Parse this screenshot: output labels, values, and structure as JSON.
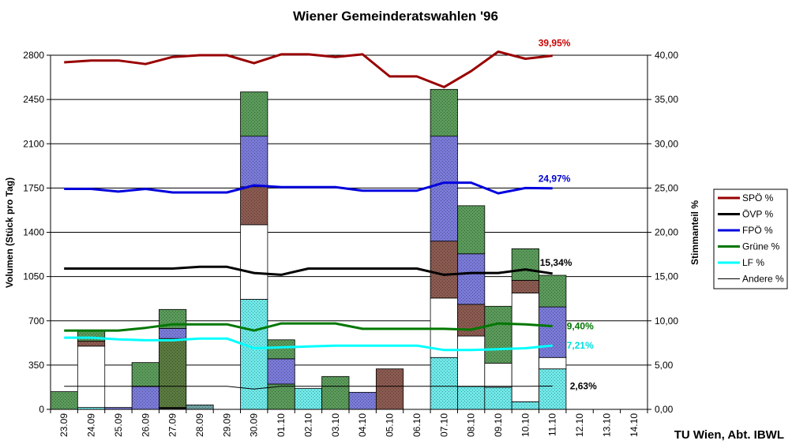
{
  "chart_data": {
    "type": "bar",
    "title": "Wiener Gemeinderatswahlen '96",
    "ylabel": "Volumen (Stück pro Tag)",
    "y2label": "Stimmanteil %",
    "footer": "TU Wien, Abt. IBWL",
    "categories": [
      "23.09",
      "24.09",
      "25.09",
      "26.09",
      "27.09",
      "28.09",
      "29.09",
      "30.09",
      "01.10",
      "02.10",
      "03.10",
      "04.10",
      "05.10",
      "06.10",
      "07.10",
      "08.10",
      "09.10",
      "10.10",
      "11.10",
      "12.10",
      "13.10",
      "14.10"
    ],
    "ylim": [
      0,
      2800
    ],
    "y2lim": [
      0,
      40
    ],
    "yticks": [
      "0",
      "350",
      "700",
      "1050",
      "1400",
      "1750",
      "2100",
      "2450",
      "2800"
    ],
    "y2ticks": [
      "0,00",
      "5,00",
      "10,00",
      "15,00",
      "20,00",
      "25,00",
      "30,00",
      "35,00",
      "40,00"
    ],
    "bar_segments": [
      [
        {
          "v": 140,
          "c": "#5a9a5a"
        }
      ],
      [
        {
          "v": 15,
          "c": "#6fe8e8"
        },
        {
          "v": 485,
          "c": "#ffffff"
        },
        {
          "v": 40,
          "c": "#8a5a50"
        },
        {
          "v": 80,
          "c": "#5a9a5a"
        }
      ],
      [
        {
          "v": 15,
          "c": "#7a7ad8"
        }
      ],
      [
        {
          "v": 180,
          "c": "#7a7ad8"
        },
        {
          "v": 190,
          "c": "#5a9a5a"
        }
      ],
      [
        {
          "v": 15,
          "c": "#111111"
        },
        {
          "v": 545,
          "c": "#5a7a40"
        },
        {
          "v": 80,
          "c": "#7a7ad8"
        },
        {
          "v": 150,
          "c": "#5a9a5a"
        }
      ],
      [
        {
          "v": 35,
          "c": "#6fa0a0"
        }
      ],
      [],
      [
        {
          "v": 870,
          "c": "#6fe8e8"
        },
        {
          "v": 590,
          "c": "#ffffff"
        },
        {
          "v": 300,
          "c": "#8a5a50"
        },
        {
          "v": 400,
          "c": "#7a7ad8"
        },
        {
          "v": 350,
          "c": "#5a9a5a"
        }
      ],
      [
        {
          "v": 200,
          "c": "#5a9a5a"
        },
        {
          "v": 200,
          "c": "#7a7ad8"
        },
        {
          "v": 150,
          "c": "#5a9a5a"
        }
      ],
      [
        {
          "v": 165,
          "c": "#6fe8e8"
        }
      ],
      [
        {
          "v": 260,
          "c": "#5a9a5a"
        }
      ],
      [
        {
          "v": 135,
          "c": "#7a7ad8"
        }
      ],
      [
        {
          "v": 320,
          "c": "#8a5a50"
        }
      ],
      [],
      [
        {
          "v": 410,
          "c": "#6fe8e8"
        },
        {
          "v": 470,
          "c": "#ffffff"
        },
        {
          "v": 450,
          "c": "#8a5a50"
        },
        {
          "v": 830,
          "c": "#7a7ad8"
        },
        {
          "v": 370,
          "c": "#5a9a5a"
        }
      ],
      [
        {
          "v": 180,
          "c": "#6fe8e8"
        },
        {
          "v": 400,
          "c": "#ffffff"
        },
        {
          "v": 250,
          "c": "#8a5a50"
        },
        {
          "v": 400,
          "c": "#7a7ad8"
        },
        {
          "v": 380,
          "c": "#5a9a5a"
        }
      ],
      [
        {
          "v": 175,
          "c": "#6fe8e8"
        },
        {
          "v": 190,
          "c": "#ffffff"
        },
        {
          "v": 450,
          "c": "#5a9a5a"
        }
      ],
      [
        {
          "v": 60,
          "c": "#6fe8e8"
        },
        {
          "v": 860,
          "c": "#ffffff"
        },
        {
          "v": 100,
          "c": "#8a5a50"
        },
        {
          "v": 250,
          "c": "#5a9a5a"
        }
      ],
      [
        {
          "v": 320,
          "c": "#6fe8e8"
        },
        {
          "v": 90,
          "c": "#ffffff"
        },
        {
          "v": 400,
          "c": "#7a7ad8"
        },
        {
          "v": 250,
          "c": "#5a9a5a"
        }
      ],
      [],
      [],
      []
    ],
    "series": [
      {
        "name": "SPÖ %",
        "color": "#990000",
        "width": 3,
        "values": [
          39.2,
          39.4,
          39.4,
          39.0,
          39.8,
          40.0,
          40.0,
          39.1,
          40.1,
          40.1,
          39.8,
          40.1,
          37.6,
          37.6,
          36.4,
          38.2,
          40.4,
          39.6,
          39.95,
          null,
          null,
          null
        ]
      },
      {
        "name": "ÖVP %",
        "color": "#000000",
        "width": 3,
        "values": [
          15.9,
          15.9,
          15.9,
          15.9,
          15.9,
          16.1,
          16.1,
          15.4,
          15.2,
          15.9,
          15.9,
          15.9,
          15.9,
          15.9,
          15.2,
          15.4,
          15.4,
          15.8,
          15.34,
          null,
          null,
          null
        ]
      },
      {
        "name": "FPÖ %",
        "color": "#0000dd",
        "width": 3,
        "values": [
          24.9,
          24.9,
          24.6,
          24.9,
          24.5,
          24.5,
          24.5,
          25.3,
          25.1,
          25.1,
          25.1,
          24.7,
          24.7,
          24.7,
          25.6,
          25.6,
          24.4,
          25.0,
          24.97,
          null,
          null,
          null
        ]
      },
      {
        "name": "Grüne %",
        "color": "#007700",
        "width": 3,
        "values": [
          8.9,
          8.9,
          8.9,
          9.2,
          9.6,
          9.6,
          9.6,
          8.9,
          9.7,
          9.7,
          9.7,
          9.1,
          9.1,
          9.1,
          9.1,
          9.0,
          9.7,
          9.6,
          9.4,
          null,
          null,
          null
        ]
      },
      {
        "name": "LF %",
        "color": "#00ffff",
        "width": 3,
        "values": [
          8.1,
          8.1,
          7.9,
          7.8,
          7.8,
          8.0,
          8.0,
          6.9,
          7.0,
          7.1,
          7.2,
          7.2,
          7.2,
          7.2,
          6.7,
          6.7,
          6.8,
          6.9,
          7.21,
          null,
          null,
          null
        ]
      },
      {
        "name": "Andere %",
        "color": "#000000",
        "width": 1,
        "values": [
          2.6,
          2.6,
          2.6,
          2.6,
          2.6,
          2.6,
          2.6,
          2.3,
          2.6,
          2.6,
          2.6,
          2.6,
          2.6,
          2.6,
          2.6,
          2.6,
          2.6,
          2.6,
          2.63,
          null,
          null,
          null
        ]
      }
    ],
    "end_labels": [
      {
        "text": "39,95%",
        "color": "#cc0000",
        "series": 0
      },
      {
        "text": "24,97%",
        "color": "#0000cc",
        "series": 2
      },
      {
        "text": "15,34%",
        "color": "#000000",
        "series": 1
      },
      {
        "text": "9,40%",
        "color": "#007700",
        "series": 3
      },
      {
        "text": "7,21%",
        "color": "#00dddd",
        "series": 4
      },
      {
        "text": "2,63%",
        "color": "#000000",
        "series": 5
      }
    ],
    "legend_position": "right",
    "grid": true
  }
}
